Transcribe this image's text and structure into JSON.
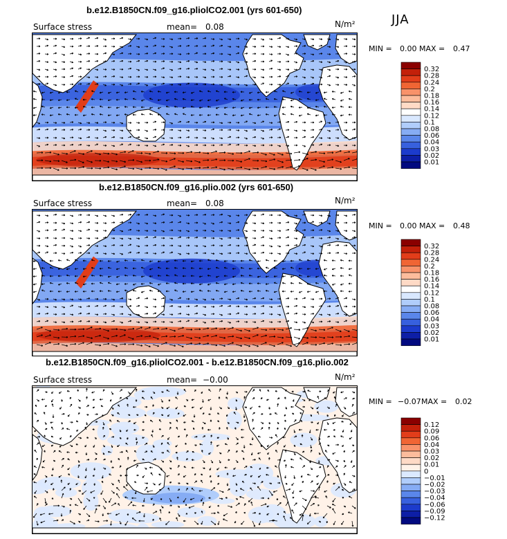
{
  "season": "JJA",
  "chart_data": [
    {
      "type": "heatmap",
      "title": "b.e12.B1850CN.f09_g16.pliolCO2.001 (yrs 601-650)",
      "field": "Surface stress",
      "mean_label": "mean=",
      "mean": "0.08",
      "units": "N/m²",
      "min_label": "MIN =",
      "min": "0.00",
      "max_label": "MAX =",
      "max": "0.47",
      "levels": [
        "0.32",
        "0.28",
        "0.24",
        "0.2",
        "0.18",
        "0.16",
        "0.14",
        "0.12",
        "0.1",
        "0.08",
        "0.06",
        "0.04",
        "0.03",
        "0.02",
        "0.01"
      ],
      "colors": [
        "#8a0000",
        "#c3200a",
        "#e23d1a",
        "#f06534",
        "#f8926a",
        "#fcbc9c",
        "#fedac6",
        "#ffffff",
        "#d9e8ff",
        "#b0cdfb",
        "#86acf4",
        "#5a86ea",
        "#3760de",
        "#1c3bcc",
        "#0d1ea6",
        "#020a80"
      ],
      "fill_shading": "red band in Southern Ocean westerlies, blue over tropics and midlatitudes"
    },
    {
      "type": "heatmap",
      "title": "b.e12.B1850CN.f09_g16.plio.002 (yrs 601-650)",
      "field": "Surface stress",
      "mean_label": "mean=",
      "mean": "0.08",
      "units": "N/m²",
      "min_label": "MIN =",
      "min": "0.00",
      "max_label": "MAX =",
      "max": "0.48",
      "levels": [
        "0.32",
        "0.28",
        "0.24",
        "0.2",
        "0.18",
        "0.16",
        "0.14",
        "0.12",
        "0.1",
        "0.08",
        "0.06",
        "0.04",
        "0.03",
        "0.02",
        "0.01"
      ],
      "colors": [
        "#8a0000",
        "#c3200a",
        "#e23d1a",
        "#f06534",
        "#f8926a",
        "#fcbc9c",
        "#fedac6",
        "#ffffff",
        "#d9e8ff",
        "#b0cdfb",
        "#86acf4",
        "#5a86ea",
        "#3760de",
        "#1c3bcc",
        "#0d1ea6",
        "#020a80"
      ],
      "fill_shading": "red band in Southern Ocean westerlies, blue over tropics and midlatitudes"
    },
    {
      "type": "heatmap",
      "title": "b.e12.B1850CN.f09_g16.pliolCO2.001 - b.e12.B1850CN.f09_g16.plio.002",
      "field": "Surface stress",
      "mean_label": "mean=",
      "mean": "−0.00",
      "units": "N/m²",
      "min_label": "MIN =",
      "min": "−0.07",
      "max_label": "MAX =",
      "max": "0.02",
      "levels": [
        "0.12",
        "0.09",
        "0.06",
        "0.04",
        "0.03",
        "0.02",
        "0.01",
        "0",
        "−0.01",
        "−0.02",
        "−0.03",
        "−0.04",
        "−0.06",
        "−0.09",
        "−0.12"
      ],
      "colors": [
        "#8a0000",
        "#c3200a",
        "#e23d1a",
        "#f06534",
        "#f8926a",
        "#fcbc9c",
        "#fedac6",
        "#fff2e8",
        "#dbe9ff",
        "#b0cdfb",
        "#86acf4",
        "#5a86ea",
        "#3760de",
        "#1c3bcc",
        "#0d1ea6",
        "#020a80"
      ],
      "fill_shading": "mostly near-zero pale orange and pale blue, stronger blue patch south of Australia"
    }
  ]
}
